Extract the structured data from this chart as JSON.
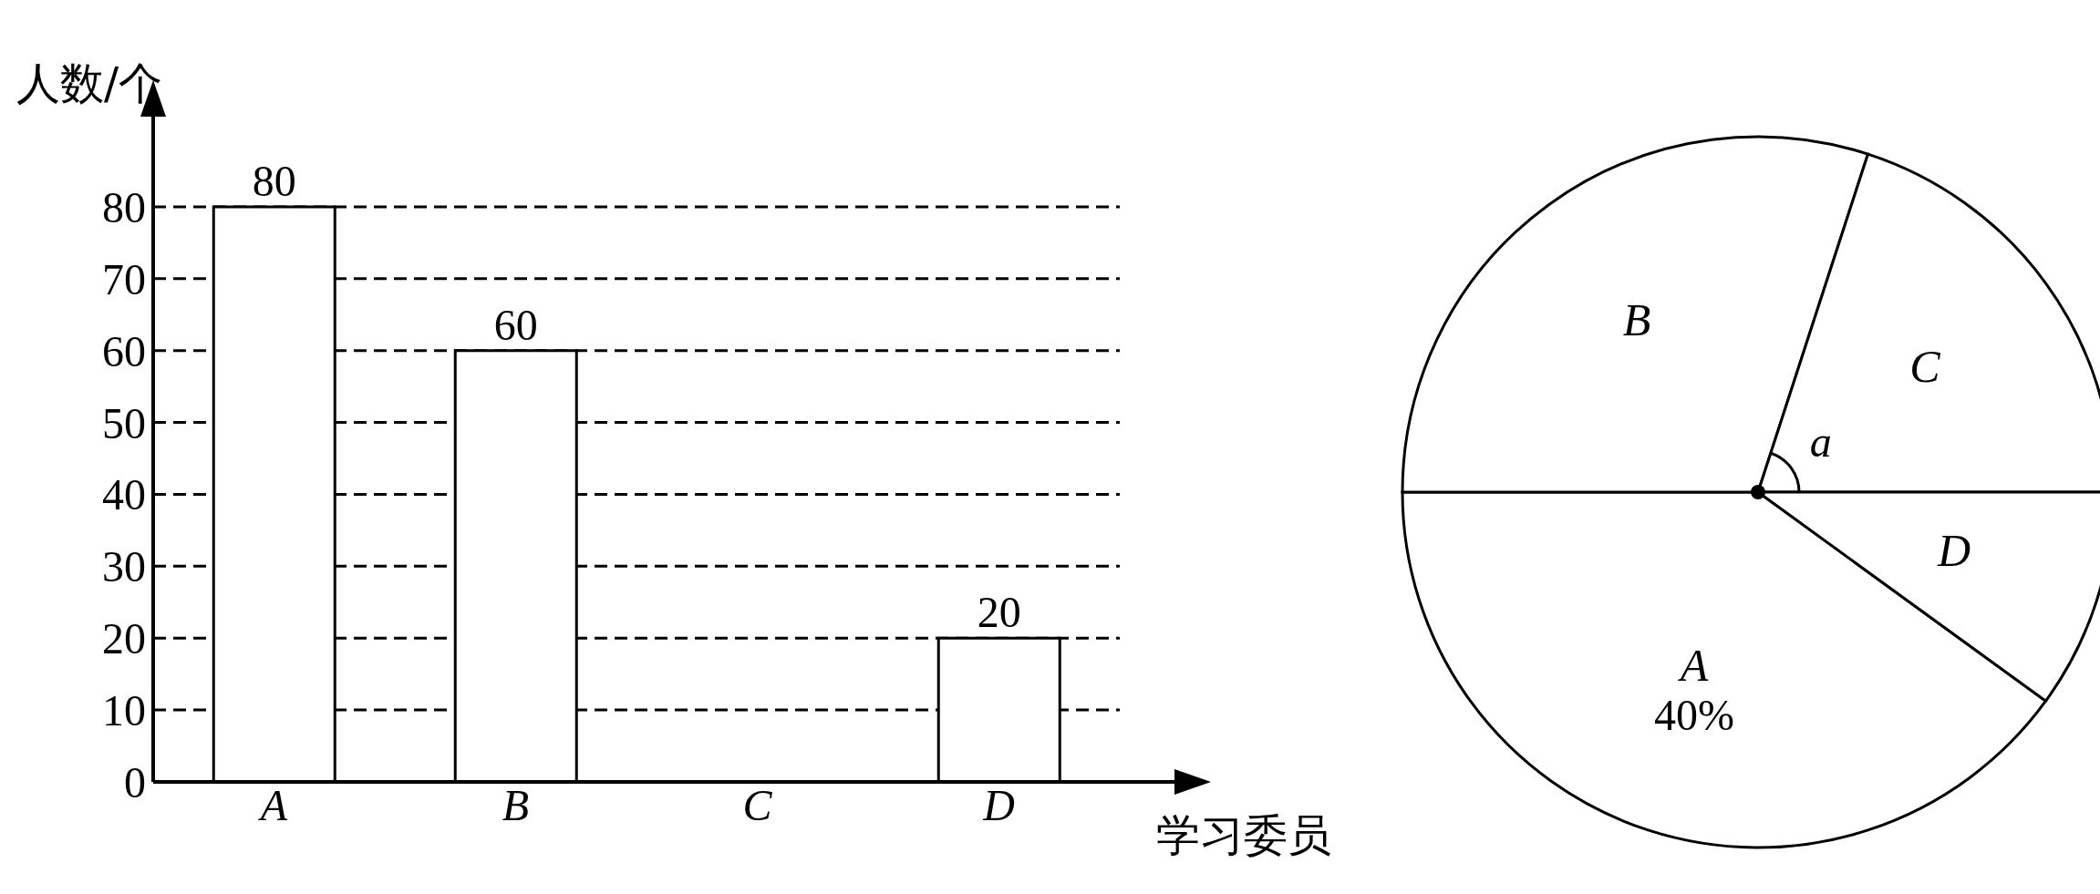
{
  "chart_data": [
    {
      "type": "bar",
      "categories": [
        "A",
        "B",
        "C",
        "D"
      ],
      "values": [
        80,
        60,
        null,
        20
      ],
      "color": "#ffffff",
      "ylim": [
        0,
        90
      ],
      "yticks": [
        0,
        10,
        20,
        30,
        40,
        50,
        60,
        70,
        80
      ],
      "ylabel": "人数/个",
      "xlabel": "学习委员",
      "grid": "y",
      "data_labels": true
    },
    {
      "type": "pie",
      "categories": [
        "A",
        "B",
        "C",
        "D"
      ],
      "values": [
        40,
        30,
        20,
        10
      ],
      "colors": [
        "#ffffff",
        "#ffffff",
        "#ffffff",
        "#ffffff"
      ],
      "value_labels": [
        "40%",
        null,
        null,
        null
      ],
      "annotations": [
        {
          "text": "a",
          "x": "C"
        }
      ]
    }
  ]
}
